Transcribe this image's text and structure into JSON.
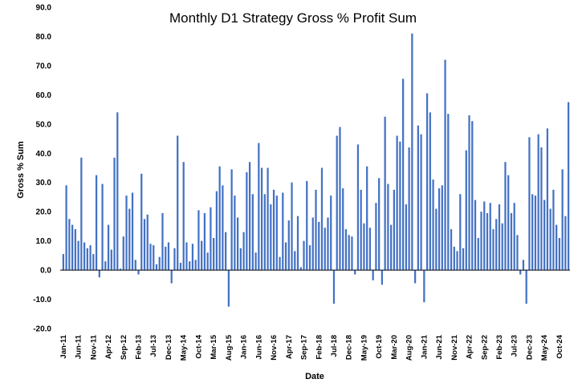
{
  "chart_data": {
    "type": "bar",
    "title": "Monthly D1 Strategy Gross % Profit Sum",
    "xlabel": "Date",
    "ylabel": "Gross % Sum",
    "ylim": [
      -20,
      90
    ],
    "yticks": [
      "-20.0",
      "-10.0",
      "0.0",
      "10.0",
      "20.0",
      "30.0",
      "40.0",
      "50.0",
      "60.0",
      "70.0",
      "80.0",
      "90.0"
    ],
    "grid": false,
    "legend": "none",
    "bar_color": "#4472C4",
    "xtick_labels": [
      "Jan-11",
      "Jun-11",
      "Nov-11",
      "Apr-12",
      "Sep-12",
      "Feb-13",
      "Jul-13",
      "Dec-13",
      "May-14",
      "Oct-14",
      "Mar-15",
      "Aug-15",
      "Jan-16",
      "Jun-16",
      "Nov-16",
      "Apr-17",
      "Sep-17",
      "Feb-18",
      "Jul-18",
      "Dec-18",
      "May-19",
      "Oct-19",
      "Mar-20",
      "Aug-20",
      "Jan-21",
      "Jun-21",
      "Nov-21",
      "Apr-22",
      "Sep-22",
      "Feb-23",
      "Jul-23",
      "Dec-23",
      "May-24",
      "Oct-24"
    ],
    "xtick_interval_months": 5,
    "values": [
      5.5,
      29,
      17.5,
      15.5,
      14,
      10,
      38.5,
      9.5,
      7.5,
      8.5,
      5.5,
      32.5,
      -2.5,
      29.5,
      3,
      15.5,
      7,
      38.5,
      54,
      0.5,
      11.5,
      25.5,
      21,
      26.5,
      3.5,
      -1.5,
      33,
      17.5,
      19,
      9,
      8.5,
      2,
      4.5,
      19.5,
      8,
      9.5,
      -4.5,
      7.5,
      46,
      2.5,
      37,
      9.5,
      3,
      9,
      3.5,
      20.5,
      10,
      19.5,
      6,
      21.5,
      11,
      27,
      35.5,
      29,
      13,
      -12.5,
      34.5,
      25.5,
      18,
      7.5,
      13,
      33.5,
      37,
      26,
      6,
      43.5,
      35,
      26,
      35,
      22.5,
      27.5,
      25.5,
      4.5,
      26.5,
      9.5,
      17,
      30,
      6.5,
      18.5,
      1,
      10,
      30.5,
      8.5,
      18,
      27.5,
      16.5,
      35,
      14.5,
      18,
      25.5,
      -11.5,
      46,
      49,
      28,
      14,
      12,
      11.5,
      -1.5,
      43,
      27.5,
      16,
      35.5,
      14.5,
      -3.5,
      23,
      31.5,
      -5,
      52.5,
      29.5,
      15.5,
      27.5,
      46,
      44,
      65.5,
      22.5,
      42,
      81,
      -4.5,
      49.5,
      46.5,
      -11,
      60.5,
      54,
      31,
      21,
      28,
      29,
      72,
      53.5,
      14,
      8,
      6.5,
      26,
      7.5,
      41,
      53,
      51,
      24,
      11,
      20,
      23.5,
      19.5,
      23,
      14,
      17.5,
      22.5,
      16,
      37,
      32.5,
      19.5,
      23,
      12,
      -1.5,
      3.5,
      -11.5,
      45.5,
      26,
      25.5,
      46.5,
      42,
      24,
      48.5,
      21,
      27.5,
      15.5,
      11,
      34.5,
      18.5,
      57.5
    ]
  }
}
